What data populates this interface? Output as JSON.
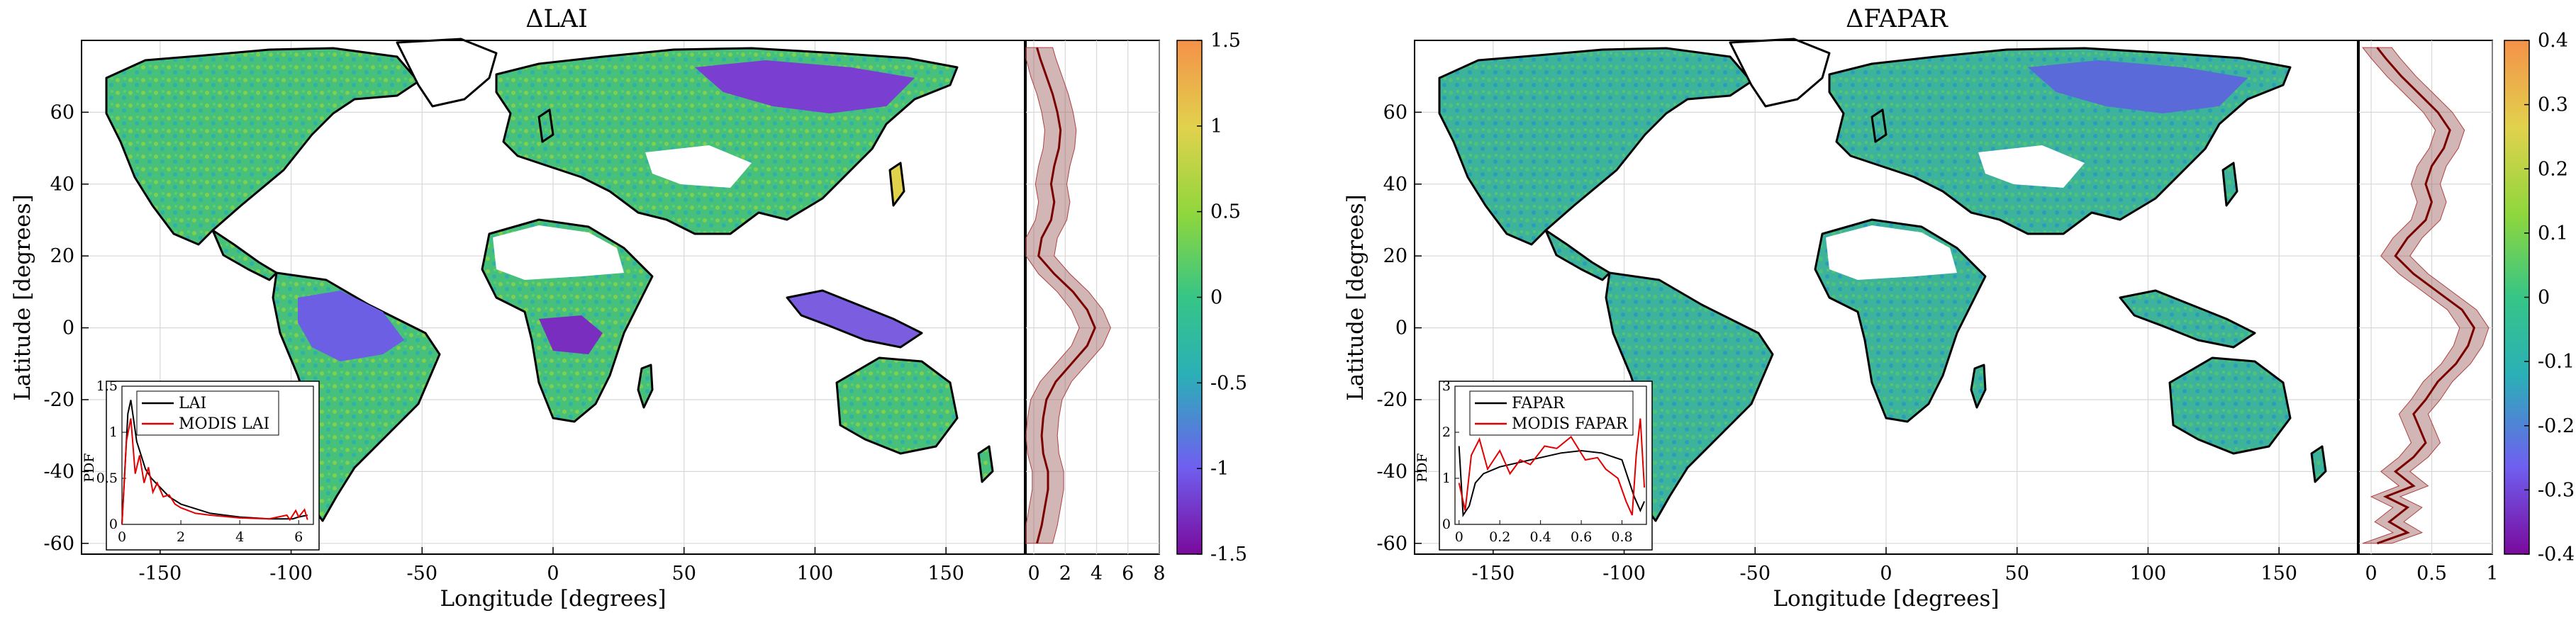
{
  "chart_data": [
    {
      "type": "map",
      "title": "ΔLAI",
      "xlabel": "Longitude [degrees]",
      "ylabel": "Latitude [degrees]",
      "xlim": [
        -180,
        180
      ],
      "ylim": [
        -63,
        80
      ],
      "xticks": [
        -150,
        -100,
        -50,
        0,
        50,
        100,
        150
      ],
      "yticks": [
        -60,
        -40,
        -20,
        0,
        20,
        40,
        60
      ],
      "grid": true,
      "colorbar": {
        "ticks": [
          -1.5,
          -1,
          -0.5,
          0,
          0.5,
          1,
          1.5
        ],
        "labels": [
          "-1.5",
          "-1",
          "-0.5",
          "0",
          "0.5",
          "1",
          "1.5"
        ],
        "colormap": [
          "#7a0a9c",
          "#6f5ff0",
          "#2ab0b6",
          "#36c586",
          "#8ed63d",
          "#e1d24c",
          "#f5914a"
        ]
      },
      "side_profile": {
        "xlim": [
          -0.5,
          8
        ],
        "xticks": [
          0,
          2,
          4,
          6,
          8
        ],
        "profile": [
          [
            -60,
            0.2
          ],
          [
            -55,
            0.5
          ],
          [
            -50,
            0.7
          ],
          [
            -45,
            0.9
          ],
          [
            -40,
            0.9
          ],
          [
            -35,
            0.6
          ],
          [
            -30,
            0.5
          ],
          [
            -25,
            0.6
          ],
          [
            -20,
            0.8
          ],
          [
            -15,
            1.4
          ],
          [
            -10,
            2.4
          ],
          [
            -5,
            3.4
          ],
          [
            0,
            3.9
          ],
          [
            5,
            3.4
          ],
          [
            10,
            2.5
          ],
          [
            15,
            1.3
          ],
          [
            20,
            0.3
          ],
          [
            25,
            0.5
          ],
          [
            30,
            1.1
          ],
          [
            35,
            1.3
          ],
          [
            40,
            1.1
          ],
          [
            45,
            1.3
          ],
          [
            50,
            1.6
          ],
          [
            55,
            1.7
          ],
          [
            60,
            1.5
          ],
          [
            65,
            1.2
          ],
          [
            70,
            0.8
          ],
          [
            75,
            0.4
          ],
          [
            78,
            0.2
          ]
        ],
        "spread": 1.0
      },
      "inset": {
        "ylabel": "PDF",
        "xlim": [
          0,
          6.5
        ],
        "ylim": [
          0,
          1.5
        ],
        "xticks": [
          0,
          2,
          4,
          6
        ],
        "yticks": [
          0,
          0.5,
          1,
          1.5
        ],
        "series": [
          {
            "name": "LAI",
            "color": "#000000",
            "points": [
              [
                0,
                0
              ],
              [
                0.1,
                0.6
              ],
              [
                0.2,
                1.2
              ],
              [
                0.3,
                1.35
              ],
              [
                0.5,
                0.9
              ],
              [
                0.8,
                0.6
              ],
              [
                1.0,
                0.5
              ],
              [
                1.3,
                0.4
              ],
              [
                1.6,
                0.3
              ],
              [
                2.0,
                0.22
              ],
              [
                3.0,
                0.12
              ],
              [
                4.0,
                0.08
              ],
              [
                5.0,
                0.06
              ],
              [
                5.8,
                0.06
              ],
              [
                6.0,
                0.08
              ],
              [
                6.3,
                0.1
              ]
            ]
          },
          {
            "name": "MODIS LAI",
            "color": "#e00000",
            "points": [
              [
                0,
                0
              ],
              [
                0.15,
                0.9
              ],
              [
                0.3,
                1.15
              ],
              [
                0.45,
                0.55
              ],
              [
                0.6,
                0.75
              ],
              [
                0.75,
                0.45
              ],
              [
                0.9,
                0.62
              ],
              [
                1.05,
                0.35
              ],
              [
                1.2,
                0.45
              ],
              [
                1.4,
                0.3
              ],
              [
                1.6,
                0.32
              ],
              [
                1.8,
                0.22
              ],
              [
                2.0,
                0.18
              ],
              [
                2.5,
                0.12
              ],
              [
                3.0,
                0.1
              ],
              [
                4.0,
                0.07
              ],
              [
                5.0,
                0.06
              ],
              [
                5.6,
                0.1
              ],
              [
                5.7,
                0.05
              ],
              [
                5.9,
                0.15
              ],
              [
                6.0,
                0.08
              ],
              [
                6.2,
                0.16
              ],
              [
                6.3,
                0.05
              ]
            ]
          }
        ]
      }
    },
    {
      "type": "map",
      "title": "ΔFAPAR",
      "xlabel": "Longitude [degrees]",
      "ylabel": "Latitude [degrees]",
      "xlim": [
        -180,
        180
      ],
      "ylim": [
        -63,
        80
      ],
      "xticks": [
        -150,
        -100,
        -50,
        0,
        50,
        100,
        150
      ],
      "yticks": [
        -60,
        -40,
        -20,
        0,
        20,
        40,
        60
      ],
      "grid": true,
      "colorbar": {
        "ticks": [
          -0.4,
          -0.3,
          -0.2,
          -0.1,
          0,
          0.1,
          0.2,
          0.3,
          0.4
        ],
        "labels": [
          "-0.4",
          "-0.3",
          "-0.2",
          "-0.1",
          "0",
          "0.1",
          "0.2",
          "0.3",
          "0.4"
        ],
        "colormap": [
          "#7a0a9c",
          "#6f5ff0",
          "#2ab0b6",
          "#36c586",
          "#8ed63d",
          "#e1d24c",
          "#f5914a"
        ]
      },
      "side_profile": {
        "xlim": [
          -0.1,
          1
        ],
        "xticks": [
          0,
          0.5,
          1
        ],
        "profile": [
          [
            -60,
            0.05
          ],
          [
            -57,
            0.3
          ],
          [
            -54,
            0.15
          ],
          [
            -50,
            0.3
          ],
          [
            -47,
            0.12
          ],
          [
            -44,
            0.35
          ],
          [
            -40,
            0.2
          ],
          [
            -36,
            0.35
          ],
          [
            -32,
            0.45
          ],
          [
            -28,
            0.4
          ],
          [
            -24,
            0.35
          ],
          [
            -20,
            0.45
          ],
          [
            -15,
            0.55
          ],
          [
            -10,
            0.7
          ],
          [
            -5,
            0.8
          ],
          [
            0,
            0.85
          ],
          [
            5,
            0.75
          ],
          [
            10,
            0.55
          ],
          [
            15,
            0.35
          ],
          [
            20,
            0.2
          ],
          [
            25,
            0.3
          ],
          [
            30,
            0.45
          ],
          [
            35,
            0.5
          ],
          [
            40,
            0.45
          ],
          [
            45,
            0.5
          ],
          [
            50,
            0.6
          ],
          [
            55,
            0.65
          ],
          [
            60,
            0.55
          ],
          [
            65,
            0.4
          ],
          [
            70,
            0.25
          ],
          [
            75,
            0.12
          ],
          [
            78,
            0.05
          ]
        ],
        "spread": 0.12
      },
      "inset": {
        "ylabel": "PDF",
        "xlim": [
          -0.02,
          0.92
        ],
        "ylim": [
          0,
          3
        ],
        "xticks": [
          0,
          0.2,
          0.4,
          0.6,
          0.8
        ],
        "yticks": [
          0,
          1,
          2,
          3
        ],
        "series": [
          {
            "name": "FAPAR",
            "color": "#000000",
            "points": [
              [
                0,
                1.7
              ],
              [
                0.02,
                0.2
              ],
              [
                0.05,
                0.4
              ],
              [
                0.08,
                0.9
              ],
              [
                0.12,
                1.1
              ],
              [
                0.2,
                1.25
              ],
              [
                0.3,
                1.35
              ],
              [
                0.4,
                1.45
              ],
              [
                0.5,
                1.55
              ],
              [
                0.6,
                1.6
              ],
              [
                0.7,
                1.55
              ],
              [
                0.8,
                1.4
              ],
              [
                0.86,
                0.6
              ],
              [
                0.89,
                0.3
              ],
              [
                0.91,
                0.5
              ]
            ]
          },
          {
            "name": "MODIS FAPAR",
            "color": "#e00000",
            "points": [
              [
                0,
                0.9
              ],
              [
                0.03,
                0.3
              ],
              [
                0.06,
                1.5
              ],
              [
                0.1,
                1.85
              ],
              [
                0.14,
                1.2
              ],
              [
                0.2,
                1.6
              ],
              [
                0.25,
                1.1
              ],
              [
                0.3,
                1.4
              ],
              [
                0.35,
                1.3
              ],
              [
                0.42,
                1.7
              ],
              [
                0.48,
                1.65
              ],
              [
                0.55,
                1.9
              ],
              [
                0.62,
                1.4
              ],
              [
                0.68,
                1.45
              ],
              [
                0.72,
                1.2
              ],
              [
                0.78,
                1.0
              ],
              [
                0.82,
                0.5
              ],
              [
                0.85,
                0.2
              ],
              [
                0.87,
                1.5
              ],
              [
                0.89,
                2.3
              ],
              [
                0.91,
                0.8
              ]
            ]
          }
        ]
      }
    }
  ]
}
